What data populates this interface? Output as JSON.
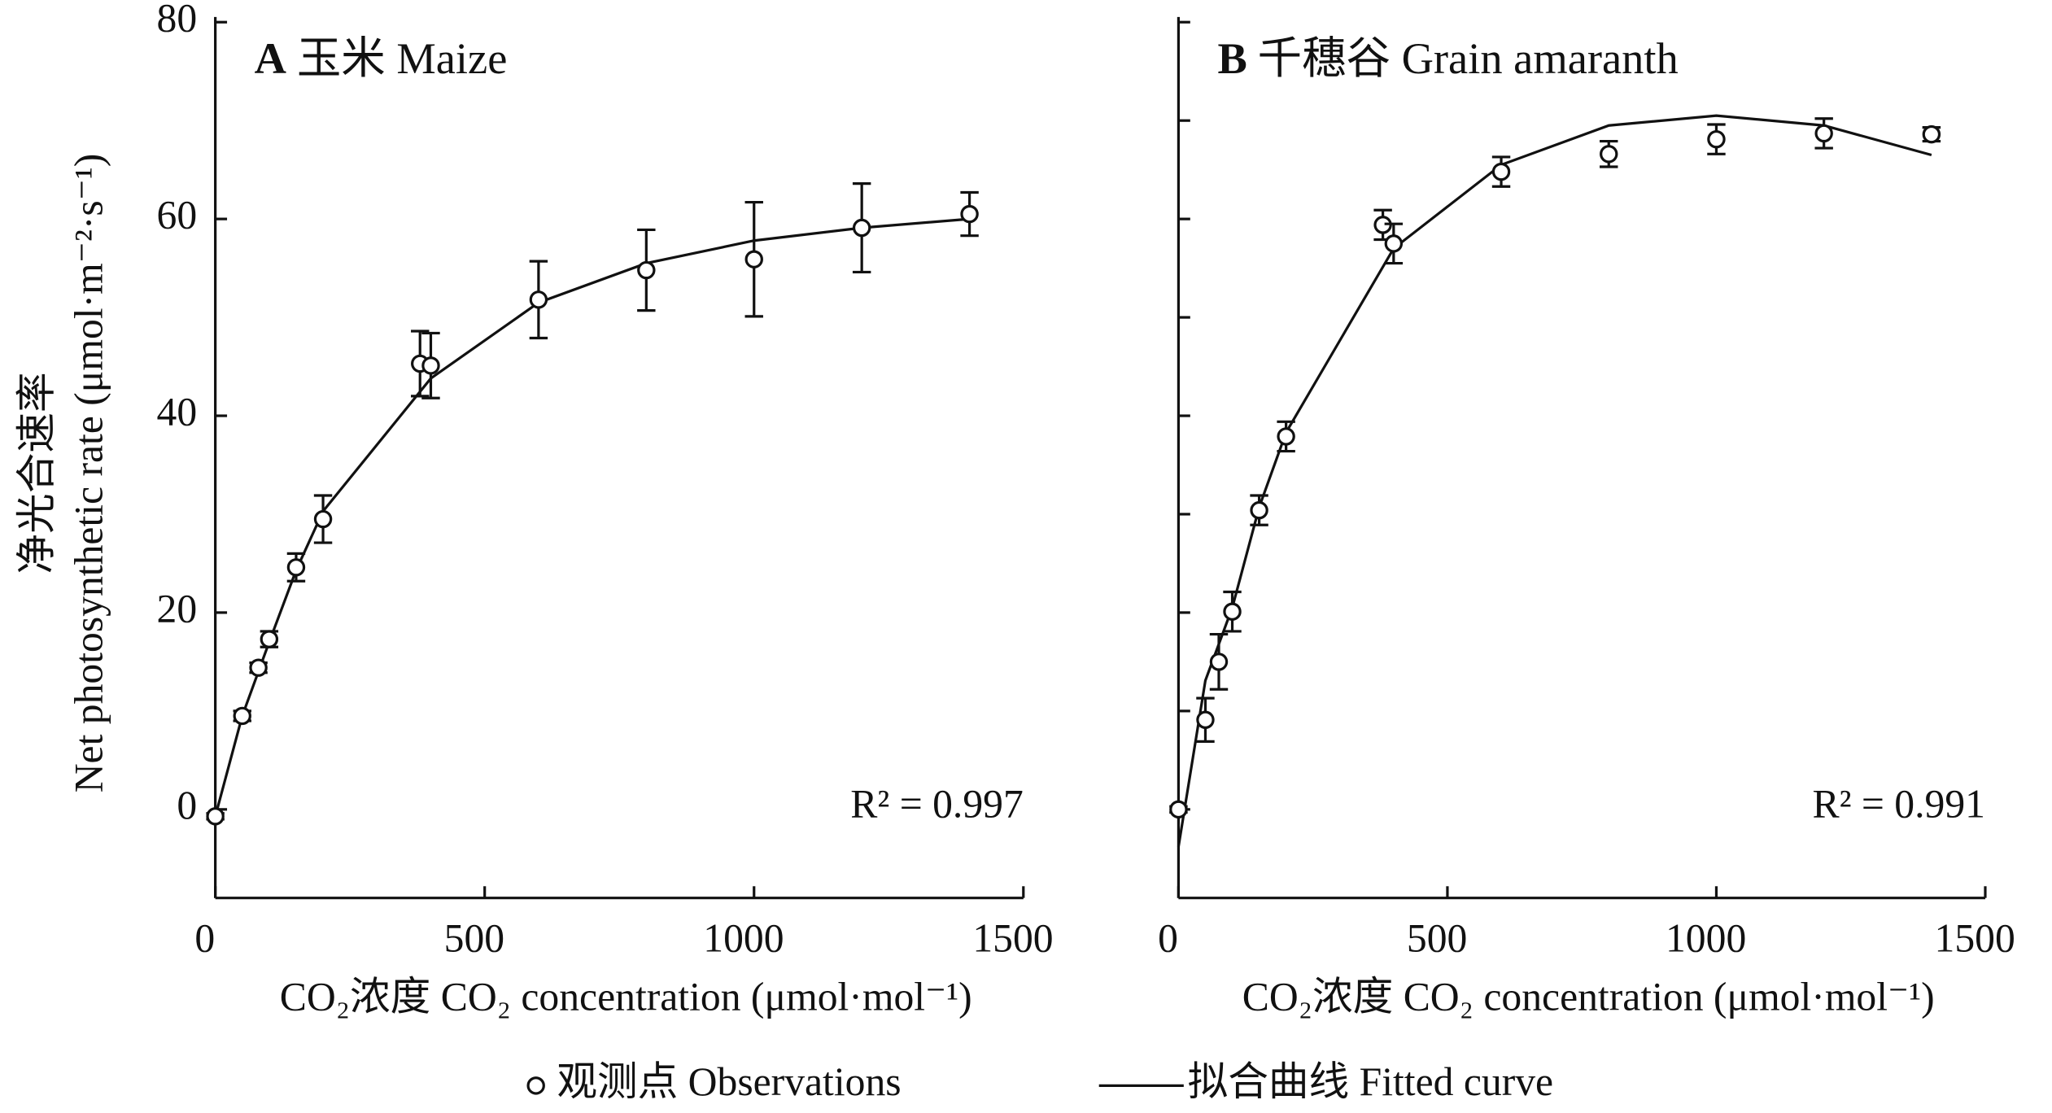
{
  "chart_data": [
    {
      "type": "scatter",
      "panel_label": "A",
      "title": "玉米 Maize",
      "annotation": "R² = 0.997",
      "xlabel": "CO₂浓度 CO₂ concentration (μmol·mol⁻¹)",
      "ylabel": [
        "净光合速率",
        "Net photosynthetic rate (μmol·m⁻²·s⁻¹)"
      ],
      "xlim": [
        0,
        1500
      ],
      "xticks": [
        0,
        500,
        1000,
        1500
      ],
      "ylim": [
        -9,
        80
      ],
      "yticks": [
        0,
        20,
        40,
        60,
        80
      ],
      "color": "#111111",
      "series": [
        {
          "name": "观测点 Observations",
          "x": [
            0,
            50,
            80,
            100,
            150,
            200,
            380,
            400,
            600,
            800,
            1000,
            1200,
            1400
          ],
          "values": [
            -0.7,
            9.5,
            14.4,
            17.3,
            24.6,
            29.5,
            45.3,
            45.1,
            51.8,
            54.8,
            55.9,
            59.1,
            60.5
          ],
          "errors": [
            0.3,
            0.5,
            0.5,
            0.8,
            1.4,
            2.4,
            3.3,
            3.3,
            3.9,
            4.1,
            5.8,
            4.5,
            2.2
          ]
        },
        {
          "name": "拟合曲线 Fitted curve",
          "x": [
            0,
            50,
            100,
            150,
            200,
            400,
            600,
            800,
            1000,
            1200,
            1400
          ],
          "values": [
            -0.7,
            9.5,
            17,
            24.3,
            30.3,
            43.8,
            51.5,
            55.5,
            57.8,
            59.1,
            60
          ]
        }
      ]
    },
    {
      "type": "scatter",
      "panel_label": "B",
      "title": "千穗谷 Grain amaranth",
      "annotation": "R² = 0.991",
      "xlabel": "CO₂浓度 CO₂ concentration (μmol·mol⁻¹)",
      "xlim": [
        0,
        1500
      ],
      "xticks": [
        0,
        500,
        1000,
        1500
      ],
      "ylim": [
        -9,
        80
      ],
      "yticks": [
        0,
        10,
        20,
        30,
        40,
        50,
        60,
        70,
        80
      ],
      "color": "#111111",
      "series": [
        {
          "x": [
            0,
            50,
            75,
            100,
            150,
            200,
            380,
            400,
            600,
            800,
            1000,
            1200,
            1400
          ],
          "values": [
            0,
            9.1,
            15.0,
            20.1,
            30.4,
            37.9,
            59.4,
            57.5,
            64.8,
            66.6,
            68.1,
            68.7,
            68.6
          ],
          "errors": [
            0.3,
            2.2,
            2.8,
            2.0,
            1.5,
            1.5,
            1.5,
            2.0,
            1.5,
            1.3,
            1.5,
            1.5,
            0.7
          ]
        },
        {
          "x": [
            0,
            50,
            100,
            150,
            200,
            400,
            600,
            800,
            1000,
            1200,
            1400
          ],
          "values": [
            -3.8,
            13.1,
            20.5,
            30.7,
            38.3,
            57,
            65.5,
            69.5,
            70.5,
            69.5,
            66.5
          ]
        }
      ]
    }
  ]
}
